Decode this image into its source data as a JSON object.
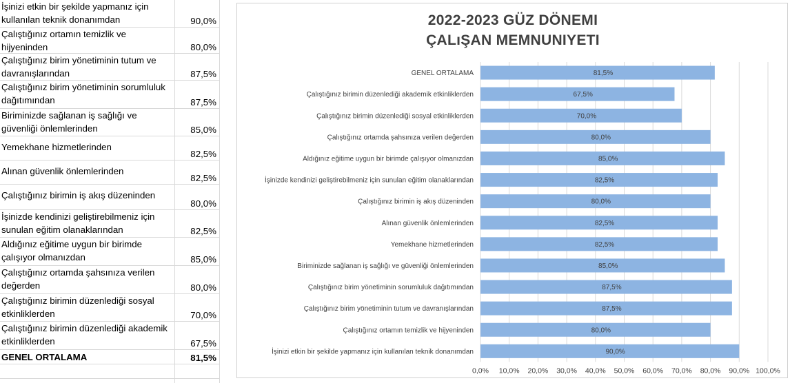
{
  "sheet": {
    "rows": [
      {
        "label": "İşinizi etkin bir şekilde yapmanız için kullanılan teknik donanımdan",
        "value": "90,0%"
      },
      {
        "label": "Çalıştığınız ortamın temizlik ve hijyeninden",
        "value": "80,0%"
      },
      {
        "label": "Çalıştığınız birim yönetiminin tutum ve davranışlarından",
        "value": "87,5%"
      },
      {
        "label": "Çalıştığınız birim yönetiminin sorumluluk dağıtımından",
        "value": "87,5%"
      },
      {
        "label": "Biriminizde sağlanan iş sağlığı ve güvenliği önlemlerinden",
        "value": "85,0%"
      },
      {
        "label": "Yemekhane hizmetlerinden",
        "value": "82,5%"
      },
      {
        "label": "Alınan güvenlik önlemlerinden",
        "value": "82,5%"
      },
      {
        "label": "Çalıştığınız birimin iş akış düzeninden",
        "value": "80,0%"
      },
      {
        "label": "İşinizde kendinizi geliştirebilmeniz için sunulan eğitim olanaklarından",
        "value": "82,5%"
      },
      {
        "label": "Aldığınız eğitime uygun bir birimde çalışıyor olmanızdan",
        "value": "85,0%"
      },
      {
        "label": "Çalıştığınız ortamda şahsınıza verilen değerden",
        "value": "80,0%"
      },
      {
        "label": "Çalıştığınız birimin düzenlediği sosyal etkinliklerden",
        "value": "70,0%"
      },
      {
        "label": "Çalıştığınız birimin düzenlediği akademik etkinliklerden",
        "value": "67,5%"
      },
      {
        "label": "GENEL ORTALAMA",
        "value": "81,5%"
      }
    ]
  },
  "chart_data": {
    "type": "bar",
    "orientation": "horizontal",
    "title_line1": "2022-2023 GÜZ DÖNEMI",
    "title_line2": "ÇALıŞAN MEMNUNIYETI",
    "categories": [
      "GENEL ORTALAMA",
      "Çalıştığınız birimin düzenlediği akademik etkinliklerden",
      "Çalıştığınız birimin düzenlediği sosyal etkinliklerden",
      "Çalıştığınız ortamda şahsınıza verilen değerden",
      "Aldığınız eğitime uygun bir birimde çalışıyor olmanızdan",
      "İşinizde kendinizi geliştirebilmeniz için sunulan eğitim olanaklarından",
      "Çalıştığınız birimin iş akış düzeninden",
      "Alınan güvenlik önlemlerinden",
      "Yemekhane hizmetlerinden",
      "Biriminizde sağlanan iş sağlığı ve güvenliği önlemlerinden",
      "Çalıştığınız birim yönetiminin sorumluluk dağıtımından",
      "Çalıştığınız birim yönetiminin tutum ve davranışlarından",
      "Çalıştığınız ortamın temizlik ve hijyeninden",
      "İşinizi etkin bir şekilde yapmanız için kullanılan teknik donanımdan"
    ],
    "values": [
      81.5,
      67.5,
      70.0,
      80.0,
      85.0,
      82.5,
      80.0,
      82.5,
      82.5,
      85.0,
      87.5,
      87.5,
      80.0,
      90.0
    ],
    "data_labels": [
      "81,5%",
      "67,5%",
      "70,0%",
      "80,0%",
      "85,0%",
      "82,5%",
      "80,0%",
      "82,5%",
      "82,5%",
      "85,0%",
      "87,5%",
      "87,5%",
      "80,0%",
      "90,0%"
    ],
    "xlim": [
      0,
      100
    ],
    "x_ticks": [
      "0,0%",
      "10,0%",
      "20,0%",
      "30,0%",
      "40,0%",
      "50,0%",
      "60,0%",
      "70,0%",
      "80,0%",
      "90,0%",
      "100,0%"
    ],
    "grid": true,
    "bar_color": "#8db4e2"
  }
}
